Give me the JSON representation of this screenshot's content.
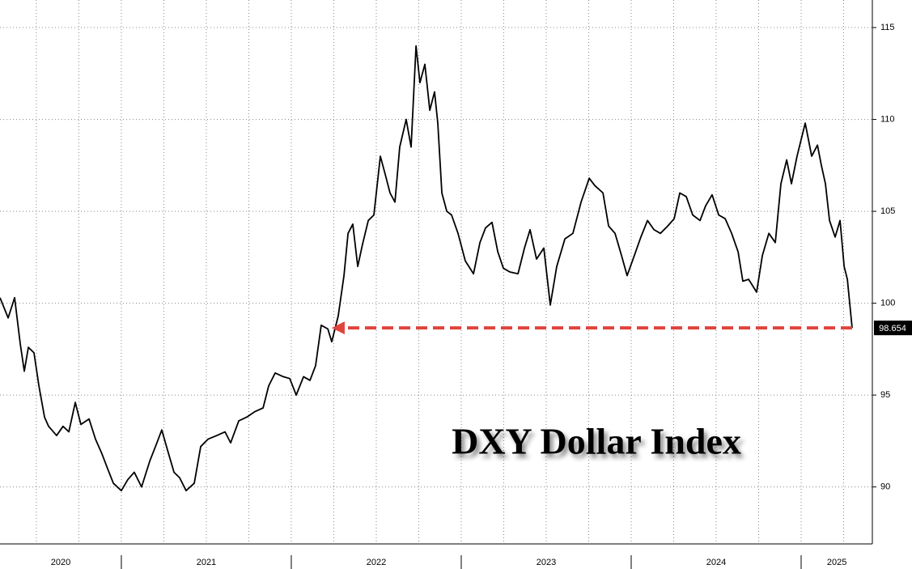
{
  "chart_data": {
    "type": "line",
    "annotation": "DXY Dollar Index",
    "color": "#000000",
    "x": [
      2020.286,
      2020.334,
      2020.372,
      2020.405,
      2020.429,
      2020.453,
      2020.486,
      2020.515,
      2020.548,
      2020.572,
      2020.619,
      2020.657,
      2020.691,
      2020.729,
      2020.762,
      2020.81,
      2020.848,
      2020.886,
      2020.919,
      2020.953,
      2021.0,
      2021.038,
      2021.076,
      2021.119,
      2021.167,
      2021.205,
      2021.238,
      2021.272,
      2021.31,
      2021.343,
      2021.381,
      2021.429,
      2021.467,
      2021.51,
      2021.562,
      2021.61,
      2021.643,
      2021.691,
      2021.738,
      2021.786,
      2021.834,
      2021.867,
      2021.905,
      2021.953,
      2021.991,
      2022.029,
      2022.072,
      2022.11,
      2022.143,
      2022.176,
      2022.215,
      2022.238,
      2022.276,
      2022.31,
      2022.334,
      2022.362,
      2022.391,
      2022.419,
      2022.453,
      2022.486,
      2022.524,
      2022.553,
      2022.581,
      2022.61,
      2022.638,
      2022.676,
      2022.705,
      2022.734,
      2022.757,
      2022.786,
      2022.815,
      2022.843,
      2022.862,
      2022.886,
      2022.915,
      2022.943,
      2022.981,
      2023.024,
      2023.072,
      2023.11,
      2023.143,
      2023.181,
      2023.215,
      2023.248,
      2023.286,
      2023.334,
      2023.372,
      2023.405,
      2023.443,
      2023.486,
      2023.524,
      2023.562,
      2023.61,
      2023.657,
      2023.705,
      2023.753,
      2023.786,
      2023.834,
      2023.867,
      2023.905,
      2023.943,
      2023.976,
      2024.015,
      2024.057,
      2024.096,
      2024.134,
      2024.172,
      2024.215,
      2024.253,
      2024.286,
      2024.324,
      2024.362,
      2024.405,
      2024.438,
      2024.476,
      2024.515,
      2024.553,
      2024.591,
      2024.629,
      2024.657,
      2024.691,
      2024.738,
      2024.772,
      2024.81,
      2024.848,
      2024.881,
      2024.915,
      2024.943,
      2024.976,
      2025.024,
      2025.062,
      2025.096,
      2025.119,
      2025.143,
      2025.167,
      2025.2,
      2025.229,
      2025.253,
      2025.272,
      2025.3
    ],
    "values": [
      100.3,
      99.2,
      100.3,
      97.8,
      96.3,
      97.6,
      97.3,
      95.5,
      93.8,
      93.3,
      92.8,
      93.3,
      93.0,
      94.6,
      93.4,
      93.7,
      92.6,
      91.8,
      91.0,
      90.2,
      89.8,
      90.4,
      90.8,
      90.0,
      91.4,
      92.3,
      93.1,
      92.0,
      90.8,
      90.5,
      89.8,
      90.2,
      92.2,
      92.6,
      92.8,
      93.0,
      92.4,
      93.6,
      93.8,
      94.1,
      94.3,
      95.5,
      96.2,
      96.0,
      95.9,
      95.0,
      96.0,
      95.8,
      96.6,
      98.8,
      98.6,
      97.9,
      99.3,
      101.5,
      103.8,
      104.3,
      102.0,
      103.2,
      104.5,
      104.8,
      108.0,
      107.0,
      106.0,
      105.5,
      108.5,
      110.0,
      108.5,
      114.0,
      112.0,
      113.0,
      110.5,
      111.5,
      109.8,
      106.0,
      105.0,
      104.8,
      103.8,
      102.3,
      101.6,
      103.3,
      104.1,
      104.4,
      102.8,
      101.9,
      101.7,
      101.6,
      103.0,
      104.0,
      102.4,
      103.0,
      99.9,
      102.0,
      103.5,
      103.8,
      105.5,
      106.8,
      106.4,
      106.0,
      104.2,
      103.8,
      102.6,
      101.5,
      102.5,
      103.6,
      104.5,
      104.0,
      103.8,
      104.2,
      104.6,
      106.0,
      105.8,
      104.8,
      104.5,
      105.3,
      105.9,
      104.8,
      104.6,
      103.8,
      102.8,
      101.2,
      101.3,
      100.6,
      102.6,
      103.8,
      103.3,
      106.5,
      107.8,
      106.5,
      108.0,
      109.8,
      108.0,
      108.6,
      107.5,
      106.5,
      104.5,
      103.6,
      104.5,
      102.0,
      101.3,
      98.654
    ],
    "xlim": [
      2020.286,
      2025.419
    ],
    "ylim": [
      86.9,
      116.5
    ],
    "yticks": [
      90,
      95,
      100,
      105,
      110,
      115
    ],
    "xticks": [
      {
        "value": 2020.643,
        "label": "2020"
      },
      {
        "value": 2021.5,
        "label": "2021"
      },
      {
        "value": 2022.5,
        "label": "2022"
      },
      {
        "value": 2023.5,
        "label": "2023"
      },
      {
        "value": 2024.5,
        "label": "2024"
      },
      {
        "value": 2025.21,
        "label": "2025"
      }
    ],
    "year_separators": [
      2021,
      2022,
      2023,
      2024,
      2025
    ],
    "xgrid": [
      2020.5,
      2020.75,
      2021,
      2021.25,
      2021.5,
      2021.75,
      2022,
      2022.25,
      2022.5,
      2022.75,
      2023,
      2023.25,
      2023.5,
      2023.75,
      2024,
      2024.25,
      2024.5,
      2024.75,
      2025,
      2025.25
    ],
    "grid": true,
    "last_value_label": true,
    "arrow_to_x": 2022.238,
    "arrow_color": "#e0443c"
  }
}
